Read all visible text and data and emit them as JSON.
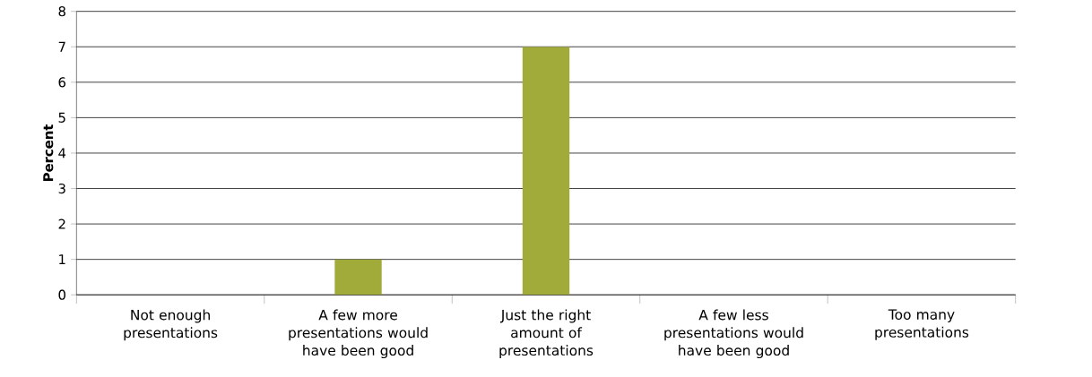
{
  "chart_data": {
    "type": "bar",
    "ylabel": "Percent",
    "categories": [
      "Not enough presentations",
      "A few more presentations would have been good",
      "Just the right amount of presentations",
      "A few less presentations would have been good",
      "Too many presentations"
    ],
    "values": [
      0,
      1,
      7,
      0,
      0
    ],
    "color": "#a0ab3a",
    "ylim": [
      0,
      8
    ],
    "yticks": [
      0,
      1,
      2,
      3,
      4,
      5,
      6,
      7,
      8
    ],
    "grid": "y"
  }
}
